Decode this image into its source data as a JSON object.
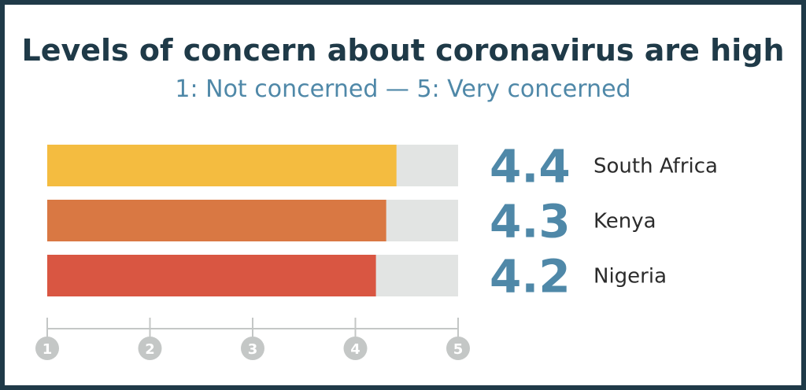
{
  "title": "Levels of concern about coronavirus are high",
  "subtitle": "1: Not concerned — 5: Very concerned",
  "colors": {
    "frame": "#1f3a48",
    "title": "#1f3a48",
    "subtitle": "#4f88a8",
    "value": "#4f88a8",
    "country": "#2b2b2b",
    "track": "#e2e4e3",
    "axis": "#c4c7c6",
    "tick_circle": "#c4c7c6",
    "tick_label": "#ffffff"
  },
  "chart_data": {
    "type": "bar",
    "orientation": "horizontal",
    "categories": [
      "South Africa",
      "Kenya",
      "Nigeria"
    ],
    "values": [
      4.4,
      4.3,
      4.2
    ],
    "value_labels": [
      "4.4",
      "4.3",
      "4.2"
    ],
    "bar_colors": [
      "#f4bc40",
      "#d97843",
      "#d95642"
    ],
    "xlim": [
      1,
      5
    ],
    "xticks": [
      "1",
      "2",
      "3",
      "4",
      "5"
    ],
    "grid": false,
    "legend": "none"
  }
}
